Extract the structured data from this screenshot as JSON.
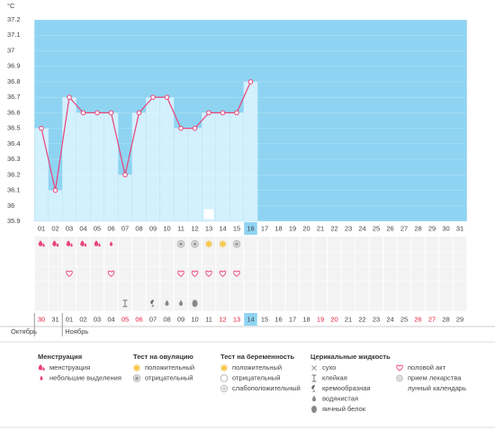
{
  "chart_data": {
    "type": "line",
    "unit": "°C",
    "categories": [
      "01",
      "02",
      "03",
      "04",
      "05",
      "06",
      "07",
      "08",
      "09",
      "10",
      "11",
      "12",
      "13",
      "14",
      "15",
      "16",
      "17",
      "18",
      "19",
      "20",
      "21",
      "22",
      "23",
      "24",
      "25",
      "26",
      "27",
      "28",
      "29",
      "30",
      "31"
    ],
    "values": [
      36.5,
      36.1,
      36.7,
      36.6,
      36.6,
      36.6,
      36.2,
      36.6,
      36.7,
      36.7,
      36.5,
      36.5,
      36.6,
      36.6,
      36.6,
      36.8,
      null,
      null,
      null,
      null,
      null,
      null,
      null,
      null,
      null,
      null,
      null,
      null,
      null,
      null,
      null
    ],
    "color": "#e8447a",
    "ylim": [
      35.9,
      37.2
    ],
    "yticks": [
      35.9,
      36,
      36.1,
      36.2,
      36.3,
      36.4,
      36.5,
      36.6,
      36.7,
      36.8,
      36.9,
      37,
      37.1,
      37.2
    ],
    "moon": [
      null,
      null,
      null,
      null,
      null,
      null,
      null,
      null,
      null,
      null,
      null,
      null,
      "moon",
      null,
      null,
      null,
      null,
      null,
      null,
      null,
      null,
      null,
      null,
      null,
      null,
      null,
      null,
      null,
      null,
      null,
      null
    ],
    "bleeding": [
      "menstruation",
      "menstruation",
      "menstruation",
      "menstruation",
      "menstruation",
      "spotting",
      null,
      null,
      null,
      null,
      null,
      null,
      null,
      null,
      null,
      null,
      null,
      null,
      null,
      null,
      null,
      null,
      null,
      null,
      null,
      null,
      null,
      null,
      null,
      null,
      null
    ],
    "ovulation_test": [
      null,
      null,
      null,
      null,
      null,
      null,
      null,
      null,
      null,
      null,
      "ovulation_negative",
      "ovulation_negative",
      "ovulation_positive",
      "ovulation_positive",
      "ovulation_negative",
      null,
      null,
      null,
      null,
      null,
      null,
      null,
      null,
      null,
      null,
      null,
      null,
      null,
      null,
      null,
      null
    ],
    "intercourse": [
      null,
      null,
      "intercourse",
      null,
      null,
      "intercourse",
      null,
      null,
      null,
      null,
      "intercourse",
      "intercourse",
      "intercourse",
      "intercourse",
      "intercourse",
      null,
      null,
      null,
      null,
      null,
      null,
      null,
      null,
      null,
      null,
      null,
      null,
      null,
      null,
      null,
      null
    ],
    "cervical_fluid": [
      null,
      null,
      null,
      null,
      null,
      null,
      "sticky",
      null,
      "creamy",
      "watery",
      "watery",
      "eggwhite",
      null,
      null,
      null,
      null,
      null,
      null,
      null,
      null,
      null,
      null,
      null,
      null,
      null,
      null,
      null,
      null,
      null,
      null,
      null
    ],
    "cycle_dates": [
      {
        "label": "30",
        "weekend": true
      },
      {
        "label": "31",
        "weekend": false
      },
      {
        "label": "01",
        "weekend": false
      },
      {
        "label": "02",
        "weekend": false
      },
      {
        "label": "03",
        "weekend": false
      },
      {
        "label": "04",
        "weekend": false
      },
      {
        "label": "05",
        "weekend": true
      },
      {
        "label": "06",
        "weekend": true
      },
      {
        "label": "07",
        "weekend": false
      },
      {
        "label": "08",
        "weekend": false
      },
      {
        "label": "09",
        "weekend": false
      },
      {
        "label": "10",
        "weekend": false
      },
      {
        "label": "11",
        "weekend": false
      },
      {
        "label": "12",
        "weekend": true
      },
      {
        "label": "13",
        "weekend": true
      },
      {
        "label": "14",
        "weekend": false
      },
      {
        "label": "15",
        "weekend": false
      },
      {
        "label": "16",
        "weekend": false
      },
      {
        "label": "17",
        "weekend": false
      },
      {
        "label": "18",
        "weekend": false
      },
      {
        "label": "19",
        "weekend": true
      },
      {
        "label": "20",
        "weekend": true
      },
      {
        "label": "21",
        "weekend": false
      },
      {
        "label": "22",
        "weekend": false
      },
      {
        "label": "23",
        "weekend": false
      },
      {
        "label": "24",
        "weekend": false
      },
      {
        "label": "25",
        "weekend": false
      },
      {
        "label": "26",
        "weekend": true
      },
      {
        "label": "27",
        "weekend": true
      },
      {
        "label": "28",
        "weekend": false
      },
      {
        "label": "29",
        "weekend": false
      }
    ],
    "months": [
      "Октябрь",
      "Ноябрь"
    ]
  },
  "legend": [
    {
      "title": "Менструация",
      "items": [
        {
          "icon": "menstruation",
          "label": "менструация"
        },
        {
          "icon": "spotting",
          "label": "небольшие выделения"
        }
      ]
    },
    {
      "title": "Тест на овуляцию",
      "items": [
        {
          "icon": "ovulation_positive",
          "label": "положительный"
        },
        {
          "icon": "ovulation_negative",
          "label": "отрицательный"
        }
      ]
    },
    {
      "title": "Тест на беременность",
      "items": [
        {
          "icon": "pregnancy_positive",
          "label": "положительный"
        },
        {
          "icon": "pregnancy_negative",
          "label": "отрицательный"
        },
        {
          "icon": "pregnancy_weak",
          "label": "слабоположительный"
        }
      ]
    },
    {
      "title": "Церикальные жидкость",
      "items": [
        {
          "icon": "dry",
          "label": "сухо"
        },
        {
          "icon": "sticky",
          "label": "клейкая"
        },
        {
          "icon": "creamy",
          "label": "кремообразная"
        },
        {
          "icon": "watery",
          "label": "водянистая"
        },
        {
          "icon": "eggwhite",
          "label": "яичный белок"
        }
      ]
    },
    {
      "items": [
        {
          "icon": "intercourse",
          "label": "половой акт"
        },
        {
          "icon": "medicine",
          "label": "прием лекарства"
        },
        {
          "icon": "moon",
          "label": "лунный календарь"
        }
      ]
    }
  ]
}
